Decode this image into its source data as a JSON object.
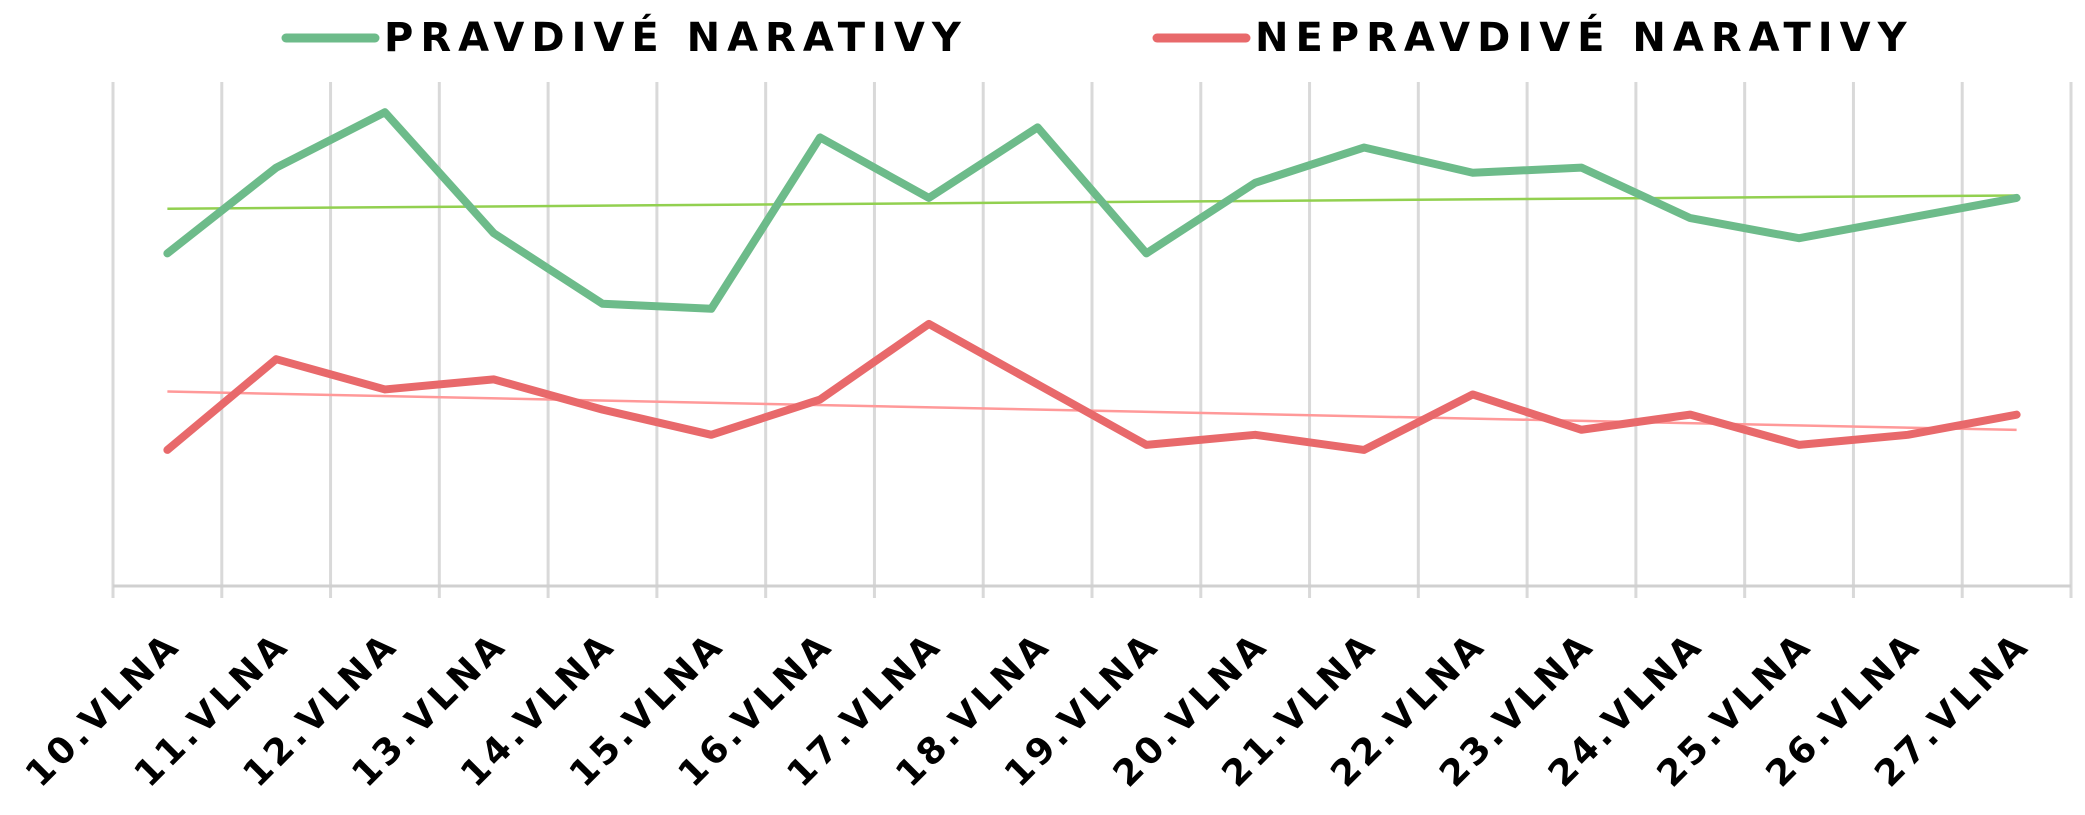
{
  "chart_data": {
    "type": "line",
    "categories": [
      "10.VLNA",
      "11.VLNA",
      "12.VLNA",
      "13.VLNA",
      "14.VLNA",
      "15.VLNA",
      "16.VLNA",
      "17.VLNA",
      "18.VLNA",
      "19.VLNA",
      "20.VLNA",
      "21.VLNA",
      "22.VLNA",
      "23.VLNA",
      "24.VLNA",
      "25.VLNA",
      "26.VLNA",
      "27.VLNA"
    ],
    "series": [
      {
        "name": "PRAVDIVÉ NARATIVY",
        "color": "#6dbb8a",
        "trend_color": "#92d050",
        "values": [
          66,
          83,
          94,
          70,
          56,
          55,
          89,
          77,
          91,
          66,
          80,
          87,
          82,
          83,
          73,
          69,
          73,
          77
        ]
      },
      {
        "name": "NEPRAVDIVÉ NARATIVY",
        "color": "#e8696b",
        "trend_color": "#ff9999",
        "values": [
          27,
          45,
          39,
          41,
          35,
          30,
          37,
          52,
          40,
          28,
          30,
          27,
          38,
          31,
          34,
          28,
          30,
          34
        ]
      }
    ],
    "ylim": [
      0,
      100
    ],
    "grid": true,
    "trendline": true,
    "legend": "top"
  }
}
